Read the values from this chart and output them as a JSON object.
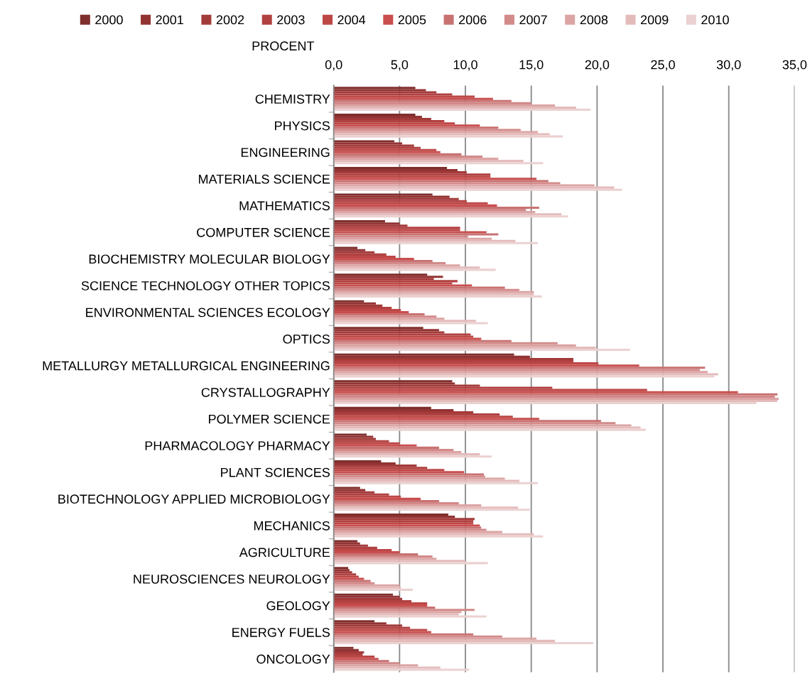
{
  "chart_data": {
    "type": "bar",
    "orientation": "horizontal",
    "xlabel": "PROCENT",
    "categories": [
      "CHEMISTRY",
      "PHYSICS",
      "ENGINEERING",
      "MATERIALS SCIENCE",
      "MATHEMATICS",
      "COMPUTER SCIENCE",
      "BIOCHEMISTRY MOLECULAR BIOLOGY",
      "SCIENCE TECHNOLOGY OTHER TOPICS",
      "ENVIRONMENTAL SCIENCES ECOLOGY",
      "OPTICS",
      "METALLURGY METALLURGICAL ENGINEERING",
      "CRYSTALLOGRAPHY",
      "POLYMER SCIENCE",
      "PHARMACOLOGY PHARMACY",
      "PLANT SCIENCES",
      "BIOTECHNOLOGY APPLIED MICROBIOLOGY",
      "MECHANICS",
      "AGRICULTURE",
      "NEUROSCIENCES NEUROLOGY",
      "GEOLOGY",
      "ENERGY FUELS",
      "ONCOLOGY"
    ],
    "xlim": [
      0,
      35
    ],
    "xticks": [
      {
        "value": 0,
        "label": "0,0"
      },
      {
        "value": 5,
        "label": "5,0"
      },
      {
        "value": 10,
        "label": "10,0"
      },
      {
        "value": 15,
        "label": "15,0"
      },
      {
        "value": 20,
        "label": "20,0"
      },
      {
        "value": 25,
        "label": "25,0"
      },
      {
        "value": 30,
        "label": "30,0"
      },
      {
        "value": 35,
        "label": "35,0"
      }
    ],
    "grid": "x",
    "legend": "top",
    "series": [
      {
        "name": "2000",
        "color": "#7f2e2e",
        "values": [
          6.2,
          6.2,
          4.6,
          8.6,
          7.5,
          3.9,
          1.8,
          7.1,
          2.3,
          6.8,
          13.7,
          9.0,
          7.4,
          2.5,
          3.6,
          2.0,
          8.7,
          1.8,
          1.1,
          4.5,
          3.1,
          1.5
        ]
      },
      {
        "name": "2001",
        "color": "#923333",
        "values": [
          7.0,
          6.7,
          5.2,
          9.4,
          8.8,
          5.0,
          2.4,
          8.3,
          3.2,
          8.0,
          14.9,
          9.2,
          9.1,
          3.0,
          4.7,
          2.4,
          9.2,
          2.0,
          1.2,
          5.0,
          4.0,
          1.9
        ]
      },
      {
        "name": "2002",
        "color": "#a33a3a",
        "values": [
          7.8,
          7.4,
          6.1,
          10.1,
          9.5,
          5.6,
          3.1,
          7.6,
          3.7,
          8.4,
          18.2,
          11.1,
          10.6,
          3.2,
          6.3,
          3.1,
          10.7,
          2.6,
          1.4,
          5.2,
          5.2,
          2.3
        ]
      },
      {
        "name": "2003",
        "color": "#b14141",
        "values": [
          9.0,
          8.4,
          6.6,
          11.9,
          10.1,
          9.6,
          4.0,
          9.4,
          4.4,
          10.4,
          18.2,
          16.6,
          12.6,
          4.2,
          7.1,
          4.2,
          10.6,
          3.3,
          1.7,
          5.9,
          5.8,
          2.2
        ]
      },
      {
        "name": "2004",
        "color": "#bd4747",
        "values": [
          10.7,
          9.2,
          7.8,
          11.9,
          11.7,
          9.6,
          4.7,
          9.0,
          5.1,
          10.6,
          20.1,
          23.8,
          13.6,
          5.0,
          8.4,
          5.1,
          10.6,
          4.4,
          1.9,
          7.1,
          7.1,
          3.1
        ]
      },
      {
        "name": "2005",
        "color": "#c94e4e",
        "values": [
          12.1,
          11.1,
          8.1,
          15.4,
          12.4,
          11.6,
          6.1,
          10.5,
          5.7,
          11.2,
          23.2,
          30.7,
          15.6,
          6.3,
          9.9,
          6.6,
          11.1,
          5.0,
          2.3,
          7.1,
          7.4,
          3.4
        ]
      },
      {
        "name": "2006",
        "color": "#c87272",
        "values": [
          13.5,
          12.5,
          9.7,
          16.3,
          15.6,
          12.5,
          7.5,
          13.0,
          6.9,
          13.5,
          28.2,
          33.7,
          20.3,
          8.0,
          11.4,
          8.0,
          11.2,
          6.4,
          2.8,
          7.7,
          10.6,
          4.2
        ]
      },
      {
        "name": "2007",
        "color": "#d38a8a",
        "values": [
          15.0,
          14.2,
          11.3,
          17.2,
          14.6,
          10.2,
          8.5,
          14.1,
          7.8,
          17.0,
          27.8,
          33.5,
          21.4,
          9.1,
          11.5,
          9.5,
          11.6,
          7.5,
          3.1,
          10.7,
          12.8,
          5.0
        ]
      },
      {
        "name": "2008",
        "color": "#dca4a4",
        "values": [
          16.8,
          15.5,
          12.5,
          19.8,
          15.3,
          12.0,
          9.6,
          15.2,
          8.4,
          18.4,
          28.4,
          33.8,
          22.6,
          9.7,
          13.0,
          11.2,
          12.8,
          7.8,
          5.0,
          9.7,
          15.4,
          6.4
        ]
      },
      {
        "name": "2009",
        "color": "#e4bbbb",
        "values": [
          18.4,
          16.4,
          14.4,
          21.3,
          17.3,
          13.8,
          11.1,
          15.2,
          10.8,
          19.9,
          29.2,
          33.7,
          23.3,
          11.1,
          14.1,
          14.0,
          15.2,
          10.0,
          5.1,
          9.5,
          16.8,
          8.1
        ]
      },
      {
        "name": "2010",
        "color": "#ebd1d1",
        "values": [
          19.5,
          17.4,
          15.9,
          21.9,
          17.8,
          15.5,
          12.3,
          15.8,
          11.7,
          22.5,
          28.9,
          32.1,
          23.7,
          12.0,
          15.5,
          14.9,
          15.9,
          11.7,
          6.0,
          11.6,
          19.7,
          10.3
        ]
      }
    ]
  }
}
